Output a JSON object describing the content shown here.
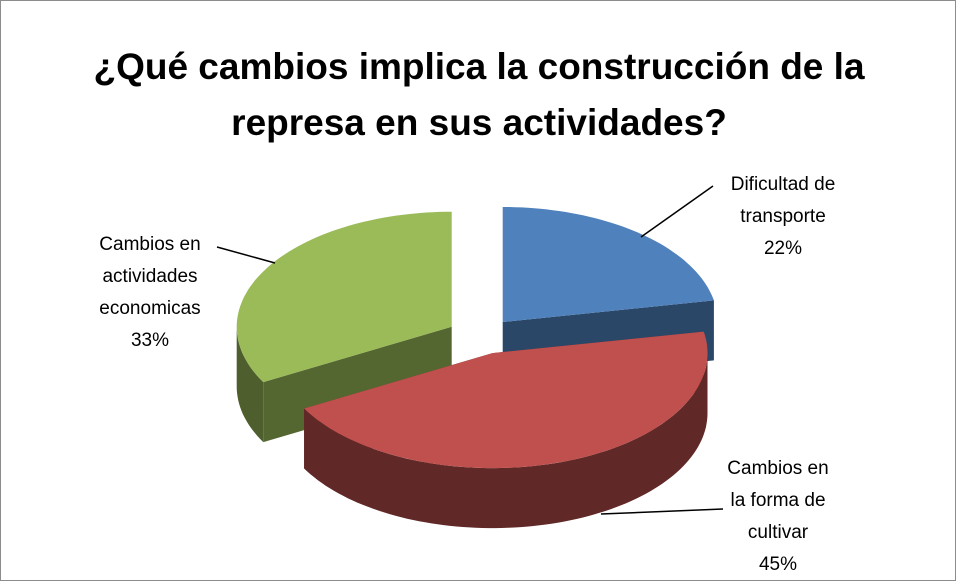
{
  "chart_data": {
    "type": "pie3d",
    "title": "¿Qué cambios implica la construcción de la represa en sus actividades?",
    "categories": [
      "Dificultad de transporte",
      "Cambios en la forma de cultivar",
      "Cambios en actividades economicas"
    ],
    "values": [
      22,
      45,
      33
    ],
    "value_labels": [
      "22%",
      "45%",
      "33%"
    ],
    "colors": [
      "#4f81bd",
      "#c0504d",
      "#9bbb59"
    ]
  }
}
